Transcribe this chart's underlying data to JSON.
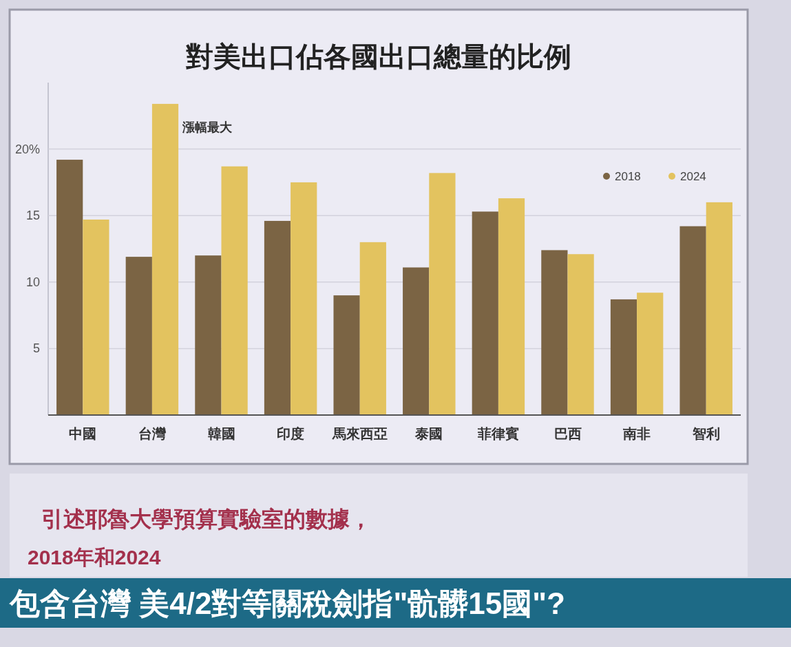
{
  "chart_data": {
    "type": "bar",
    "title": "對美出口佔各國出口總量的比例",
    "categories": [
      "中國",
      "台灣",
      "韓國",
      "印度",
      "馬來西亞",
      "泰國",
      "菲律賓",
      "巴西",
      "南非",
      "智利"
    ],
    "series": [
      {
        "name": "2018",
        "color": "#7b6444",
        "values": [
          19.2,
          11.9,
          12.0,
          14.6,
          9.0,
          11.1,
          15.3,
          12.4,
          8.7,
          14.2
        ]
      },
      {
        "name": "2024",
        "color": "#e3c35f",
        "values": [
          14.7,
          23.4,
          18.7,
          17.5,
          13.0,
          18.2,
          16.3,
          12.1,
          9.2,
          16.0
        ]
      }
    ],
    "ylim": [
      0,
      25
    ],
    "yticks": [
      5,
      10,
      15,
      {
        "value": 20,
        "label": "20%"
      }
    ],
    "grid": "y",
    "legend": "top right",
    "annotations": [
      {
        "text": "漲幅最大",
        "x": "台灣",
        "y": 23.4
      },
      "引述耶魯大學預算實驗室的數據，",
      "2018年和2024",
      "包含台灣 美4/2對等關稅劍指\"骯髒15國\"?"
    ]
  }
}
